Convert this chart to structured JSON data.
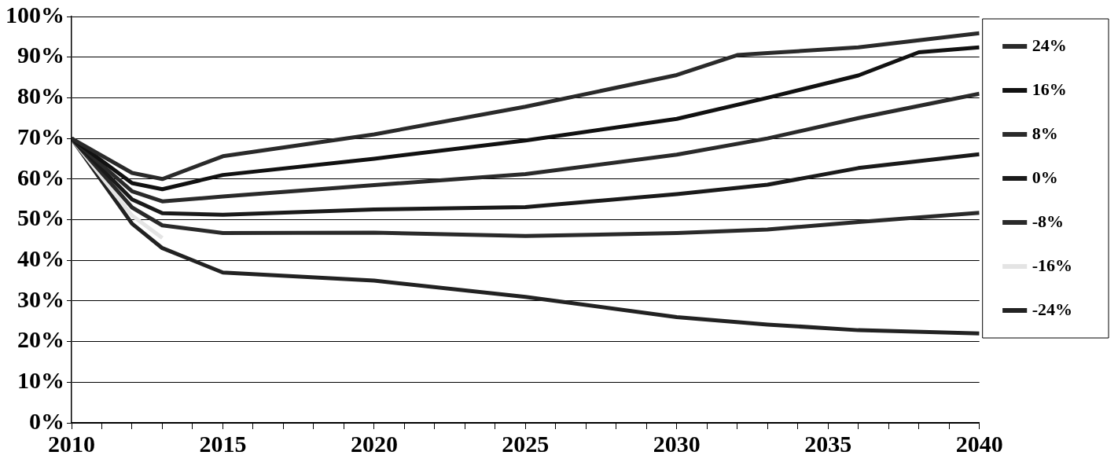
{
  "chart_data": {
    "type": "line",
    "x": [
      2010,
      2012,
      2013,
      2015,
      2020,
      2025,
      2030,
      2032,
      2033,
      2036,
      2038,
      2040
    ],
    "series": [
      {
        "name": "24%",
        "color": "#2a2a2a",
        "values": [
          70,
          61.5,
          60,
          65.6,
          71,
          77.8,
          85.6,
          90.5,
          91,
          92.4,
          null,
          95.9
        ]
      },
      {
        "name": "16%",
        "color": "#111111",
        "values": [
          70,
          59,
          57.5,
          61,
          65,
          69.5,
          74.8,
          null,
          80,
          85.5,
          91.2,
          92.4
        ]
      },
      {
        "name": "8%",
        "color": "#2a2a2a",
        "values": [
          70,
          57,
          54.5,
          55.7,
          58.5,
          61.2,
          66,
          null,
          70,
          75,
          null,
          81
        ]
      },
      {
        "name": "0%",
        "color": "#1a1a1a",
        "values": [
          70,
          55,
          51.6,
          51.2,
          52.5,
          53.1,
          56.3,
          null,
          58.6,
          62.7,
          null,
          66.1
        ]
      },
      {
        "name": "-8%",
        "color": "#2a2a2a",
        "values": [
          70,
          53,
          48.6,
          46.7,
          46.8,
          46,
          46.7,
          null,
          47.6,
          49.4,
          null,
          51.7
        ]
      },
      {
        "name": "-16%",
        "color": "#e4e4e4",
        "values": [
          70,
          51,
          45.5,
          null,
          null,
          null,
          null,
          null,
          null,
          null,
          null,
          null
        ]
      },
      {
        "name": "-24%",
        "color": "#222222",
        "values": [
          70,
          49,
          43,
          37,
          35,
          31,
          26,
          null,
          24.2,
          22.8,
          null,
          22
        ]
      }
    ],
    "xlim": [
      2010,
      2040
    ],
    "xticks": [
      2010,
      {
        "value": 2011,
        "label": null
      },
      {
        "value": 2012,
        "label": null
      },
      {
        "value": 2013,
        "label": null
      },
      {
        "value": 2014,
        "label": null
      },
      2015,
      {
        "value": 2016,
        "label": null
      },
      {
        "value": 2017,
        "label": null
      },
      {
        "value": 2018,
        "label": null
      },
      {
        "value": 2019,
        "label": null
      },
      2020,
      {
        "value": 2021,
        "label": null
      },
      {
        "value": 2022,
        "label": null
      },
      {
        "value": 2023,
        "label": null
      },
      {
        "value": 2024,
        "label": null
      },
      2025,
      {
        "value": 2026,
        "label": null
      },
      {
        "value": 2027,
        "label": null
      },
      {
        "value": 2028,
        "label": null
      },
      {
        "value": 2029,
        "label": null
      },
      2030,
      {
        "value": 2031,
        "label": null
      },
      {
        "value": 2032,
        "label": null
      },
      {
        "value": 2033,
        "label": null
      },
      {
        "value": 2034,
        "label": null
      },
      2035,
      {
        "value": 2036,
        "label": null
      },
      {
        "value": 2037,
        "label": null
      },
      {
        "value": 2038,
        "label": null
      },
      {
        "value": 2039,
        "label": null
      },
      2040
    ],
    "ylim": [
      0,
      100
    ],
    "yticks": [
      {
        "value": 0,
        "label": "0%"
      },
      {
        "value": 10,
        "label": "10%"
      },
      {
        "value": 20,
        "label": "20%"
      },
      {
        "value": 30,
        "label": "30%"
      },
      {
        "value": 40,
        "label": "40%"
      },
      {
        "value": 50,
        "label": "50%"
      },
      {
        "value": 60,
        "label": "60%"
      },
      {
        "value": 70,
        "label": "70%"
      },
      {
        "value": 80,
        "label": "80%"
      },
      {
        "value": 90,
        "label": "90%"
      },
      {
        "value": 100,
        "label": "100%"
      }
    ],
    "grid": "y",
    "legend": "right",
    "marker": "none",
    "line_style": "solid"
  }
}
